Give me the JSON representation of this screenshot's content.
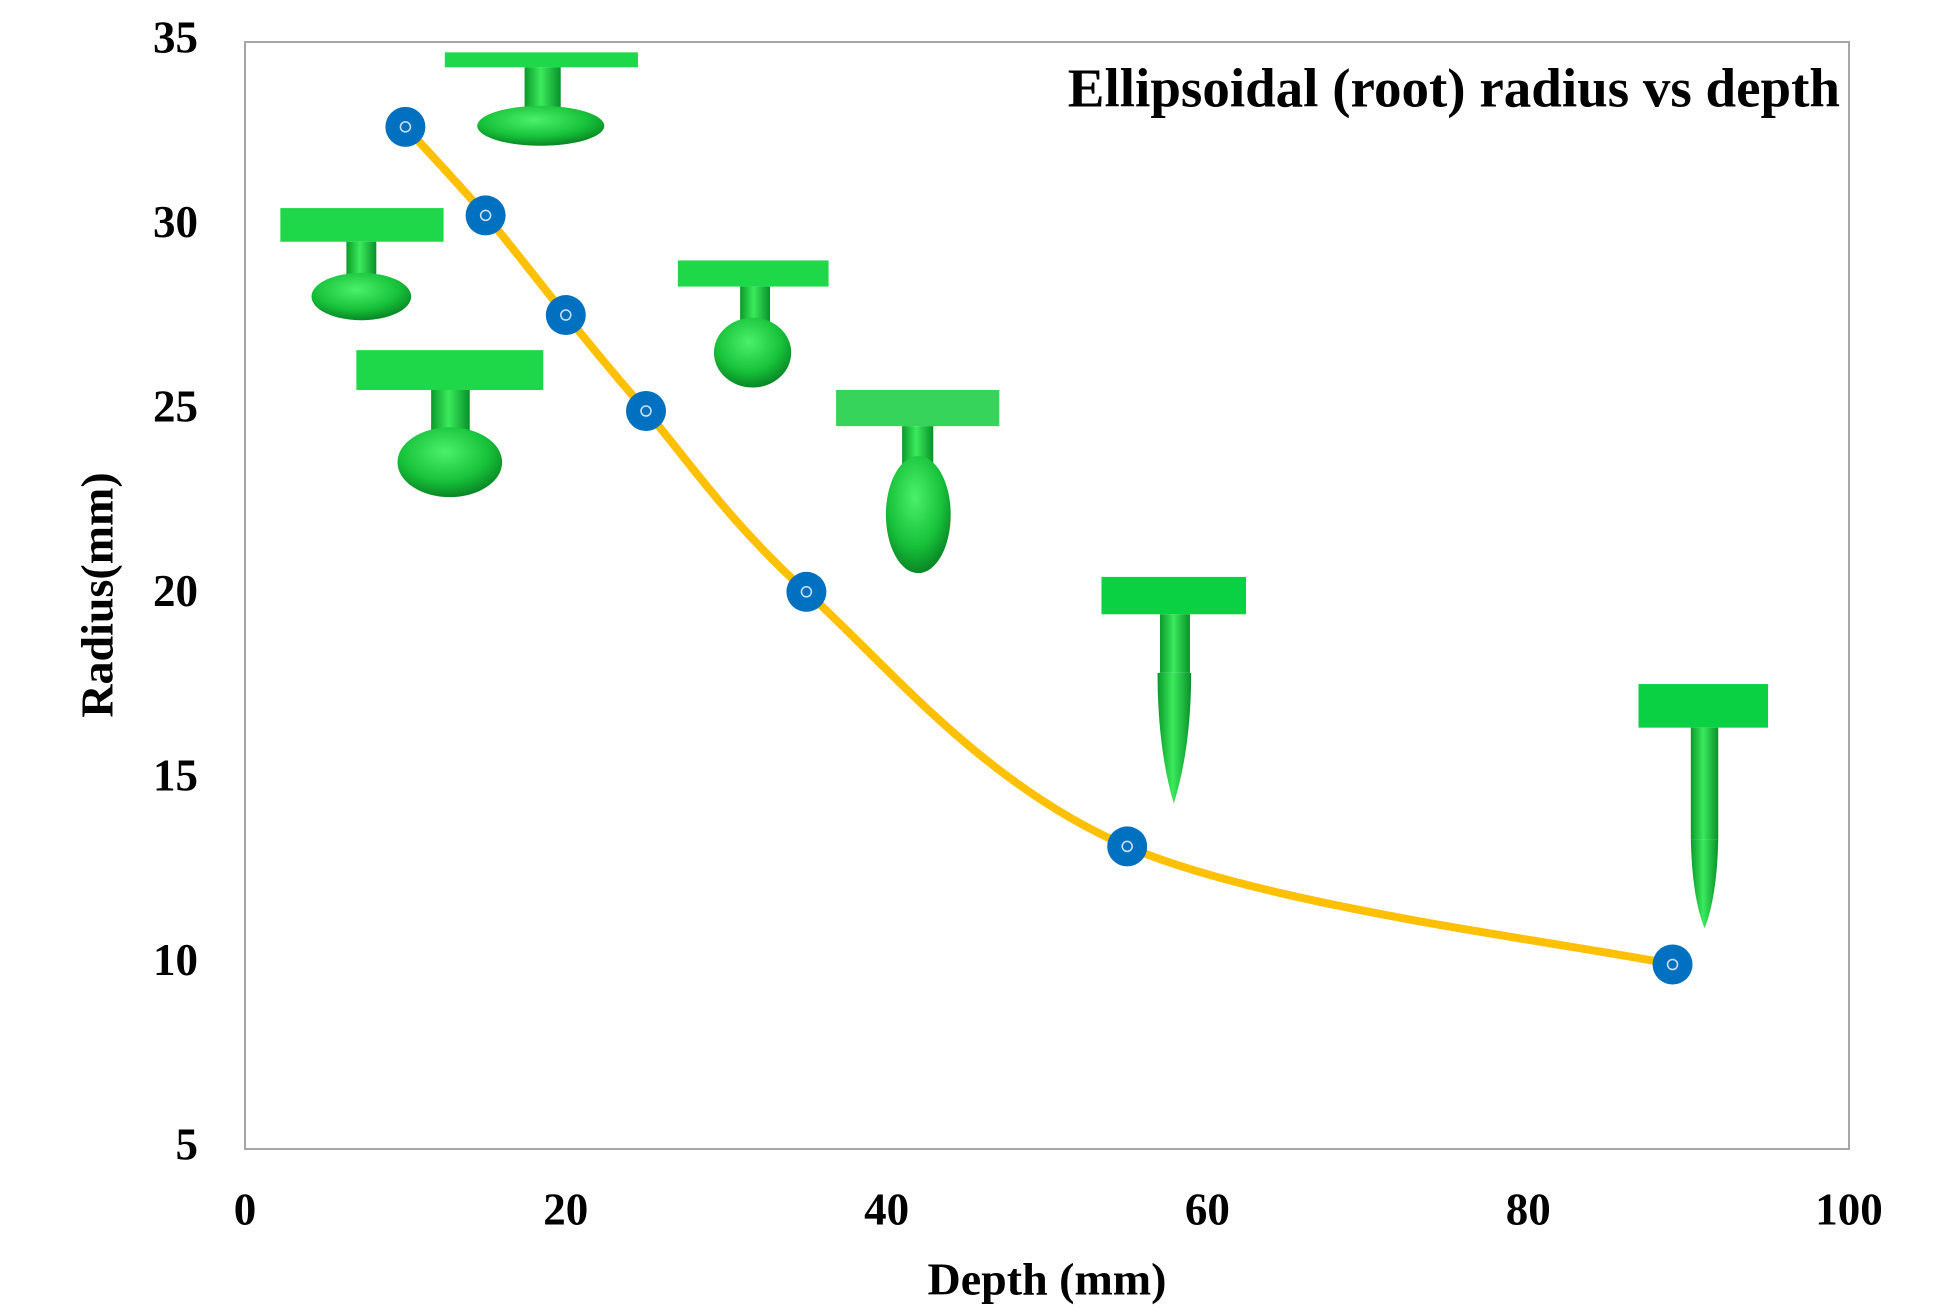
{
  "chart_data": {
    "type": "line",
    "title": "Ellipsoidal (root) radius vs depth",
    "x_label": "Depth (mm)",
    "y_label": "Radius(mm)",
    "x": [
      10,
      15,
      20,
      25,
      35,
      55,
      89
    ],
    "series": [
      {
        "color": "#ffc000",
        "marker_color": "#0070c0",
        "values": [
          32.7,
          30.3,
          27.6,
          25.0,
          20.1,
          13.2,
          10.0
        ]
      }
    ],
    "xlim": [
      0,
      100
    ],
    "ylim": [
      5,
      35
    ],
    "xticks": [
      0,
      20,
      40,
      60,
      80,
      100
    ],
    "yticks": [
      5,
      10,
      15,
      20,
      25,
      30,
      35
    ],
    "grid": false,
    "smooth": true
  }
}
